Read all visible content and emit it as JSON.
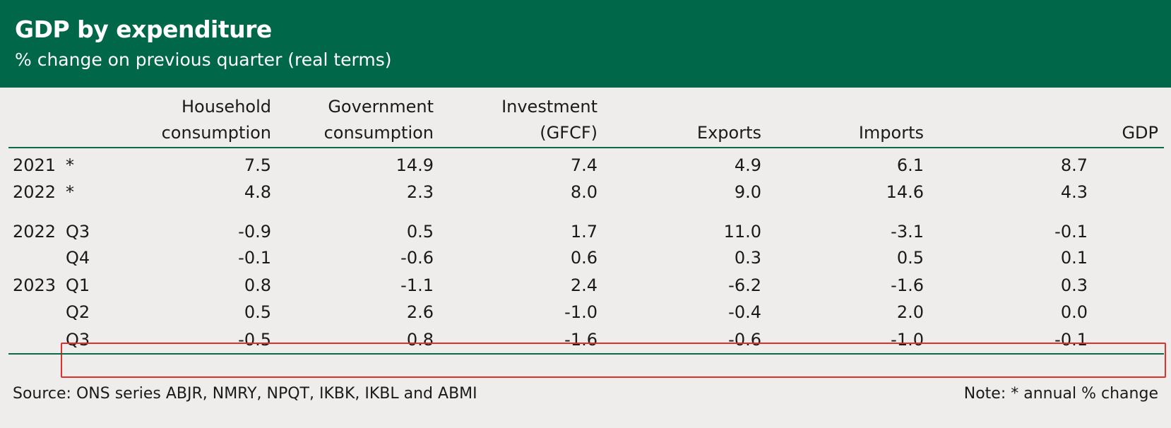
{
  "title": "GDP by expenditure",
  "subtitle": "% change on previous quarter (real terms)",
  "columns": [
    {
      "line1": "Household",
      "line2": "consumption"
    },
    {
      "line1": "Government",
      "line2": "consumption"
    },
    {
      "line1": "Investment",
      "line2": "(GFCF)"
    },
    {
      "line1": "",
      "line2": "Exports"
    },
    {
      "line1": "",
      "line2": "Imports"
    },
    {
      "line1": "",
      "line2": "GDP"
    }
  ],
  "rows": [
    {
      "year": "2021",
      "period": "*",
      "values": [
        "7.5",
        "14.9",
        "7.4",
        "4.9",
        "6.1",
        "8.7"
      ]
    },
    {
      "year": "2022",
      "period": "*",
      "values": [
        "4.8",
        "2.3",
        "8.0",
        "9.0",
        "14.6",
        "4.3"
      ]
    },
    {
      "year": "2022",
      "period": "Q3",
      "values": [
        "-0.9",
        "0.5",
        "1.7",
        "11.0",
        "-3.1",
        "-0.1"
      ]
    },
    {
      "year": "",
      "period": "Q4",
      "values": [
        "-0.1",
        "-0.6",
        "0.6",
        "0.3",
        "0.5",
        "0.1"
      ]
    },
    {
      "year": "2023",
      "period": "Q1",
      "values": [
        "0.8",
        "-1.1",
        "2.4",
        "-6.2",
        "-1.6",
        "0.3"
      ]
    },
    {
      "year": "",
      "period": "Q2",
      "values": [
        "0.5",
        "2.6",
        "-1.0",
        "-0.4",
        "2.0",
        "0.0"
      ]
    },
    {
      "year": "",
      "period": "Q3",
      "values": [
        "-0.5",
        "0.8",
        "-1.6",
        "-0.6",
        "-1.0",
        "-0.1"
      ]
    }
  ],
  "source": "Source: ONS series ABJR, NMRY, NPQT, IKBK, IKBL and ABMI",
  "note": "Note: * annual % change",
  "colors": {
    "header_bg": "#006848",
    "rule": "#0b6a4c",
    "highlight": "#e0302a",
    "page_bg": "#efedeb"
  }
}
